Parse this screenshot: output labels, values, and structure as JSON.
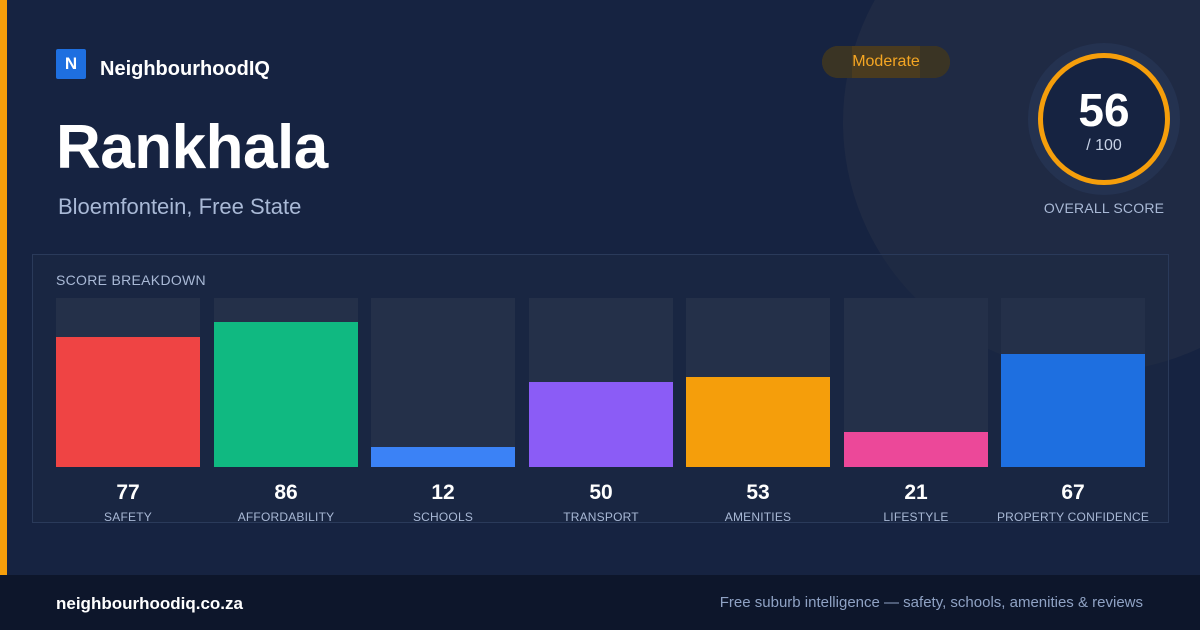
{
  "brand": {
    "logo_letter": "N",
    "name": "NeighbourhoodIQ"
  },
  "suburb": {
    "name": "Rankhala",
    "location": "Bloemfontein, Free State"
  },
  "rating_badge": {
    "label": "Moderate",
    "color": "#f5a623"
  },
  "overall": {
    "score": "56",
    "max": "/ 100",
    "label": "OVERALL SCORE",
    "ring_color": "#f59e0b"
  },
  "breakdown": {
    "title": "SCORE BREAKDOWN",
    "max_score": 100,
    "items": [
      {
        "label": "SAFETY",
        "value": 77,
        "color": "#ef4444"
      },
      {
        "label": "AFFORDABILITY",
        "value": 86,
        "color": "#10b981"
      },
      {
        "label": "SCHOOLS",
        "value": 12,
        "color": "#3b82f6"
      },
      {
        "label": "TRANSPORT",
        "value": 50,
        "color": "#8b5cf6"
      },
      {
        "label": "AMENITIES",
        "value": 53,
        "color": "#f59e0b"
      },
      {
        "label": "LIFESTYLE",
        "value": 21,
        "color": "#ec4899"
      },
      {
        "label": "PROPERTY CONFIDENCE",
        "value": 67,
        "color": "#1e6fe0"
      }
    ]
  },
  "footer": {
    "url": "neighbourhoodiq.co.za",
    "tagline": "Free suburb intelligence — safety, schools, amenities & reviews"
  },
  "accent_color": "#f59e0b"
}
